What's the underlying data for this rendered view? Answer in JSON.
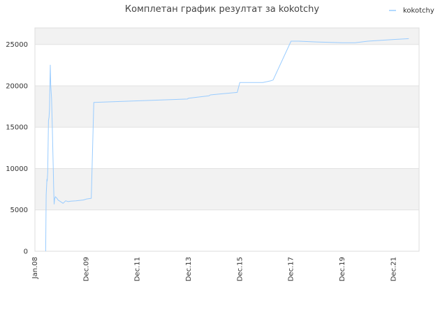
{
  "chart_data": {
    "type": "line",
    "title": "Комплетан график резултат за kokotchy",
    "xlabel": "",
    "ylabel": "",
    "x_tick_labels": [
      "Jan.08",
      "Dec.09",
      "Dec.11",
      "Dec.13",
      "Dec.15",
      "Dec.17",
      "Dec.19",
      "Dec.21"
    ],
    "x_tick_values": [
      2008.0,
      2010.0,
      2012.0,
      2014.0,
      2016.0,
      2018.0,
      2020.0,
      2022.0
    ],
    "xlim": [
      2008.0,
      2023.0
    ],
    "y_ticks": [
      0,
      5000,
      10000,
      15000,
      20000,
      25000
    ],
    "ylim": [
      0,
      27000
    ],
    "grid": true,
    "banded_background": true,
    "legend_position": "top-right",
    "series": [
      {
        "name": "kokotchy",
        "color": "#99ccff",
        "x": [
          2008.42,
          2008.44,
          2008.47,
          2008.48,
          2008.5,
          2008.53,
          2008.55,
          2008.57,
          2008.58,
          2008.6,
          2008.62,
          2008.65,
          2008.68,
          2008.7,
          2008.72,
          2008.73,
          2008.75,
          2008.77,
          2008.8,
          2008.83,
          2008.86,
          2008.88,
          2008.89,
          2008.92,
          2008.95,
          2009.0,
          2009.1,
          2009.2,
          2009.25,
          2009.3,
          2009.4,
          2009.6,
          2009.9,
          2010.0,
          2010.2,
          2010.3,
          2013.95,
          2014.0,
          2014.8,
          2014.85,
          2015.2,
          2015.9,
          2016.0,
          2016.1,
          2016.9,
          2017.2,
          2017.3,
          2018.0,
          2018.3,
          2019.0,
          2020.0,
          2020.5,
          2021.0,
          2022.0,
          2022.6
        ],
        "y": [
          0,
          6800,
          8700,
          8500,
          9500,
          15800,
          16200,
          17200,
          19500,
          22500,
          20000,
          18500,
          15000,
          12000,
          9500,
          7800,
          5700,
          6300,
          6600,
          6500,
          6400,
          6300,
          6250,
          6150,
          6100,
          6000,
          5800,
          6100,
          6050,
          6000,
          6050,
          6100,
          6200,
          6300,
          6400,
          18000,
          18400,
          18500,
          18800,
          18900,
          19000,
          19200,
          20400,
          20400,
          20400,
          20600,
          20700,
          25400,
          25400,
          25300,
          25200,
          25200,
          25400,
          25600,
          25700
        ]
      }
    ]
  }
}
